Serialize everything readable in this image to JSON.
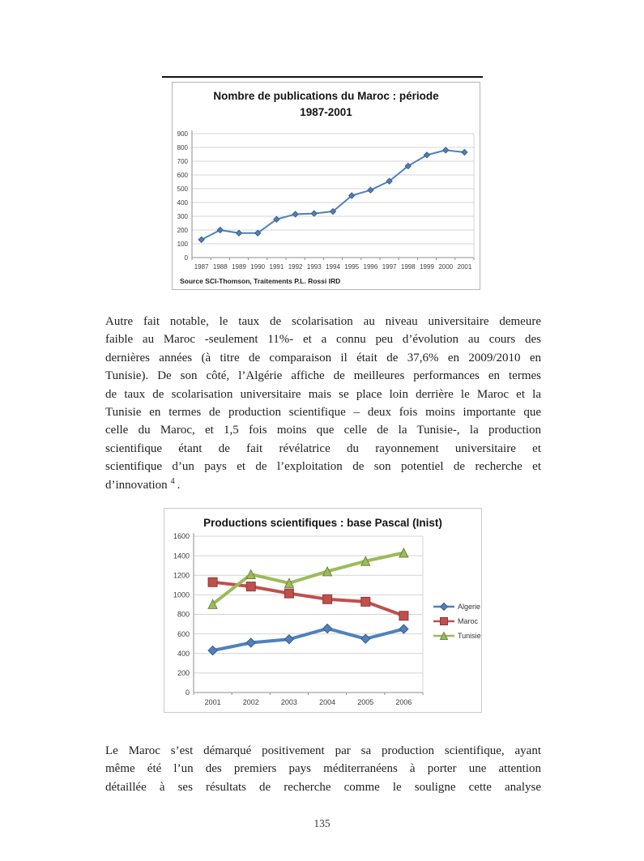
{
  "page": {
    "number": "135"
  },
  "paragraph1": {
    "lines": [
      "Autre fait notable, le taux de scolarisation au niveau universitaire demeure",
      "faible au Maroc -seulement 11%- et a connu peu d’évolution au cours des",
      "dernières années (à titre de comparaison il était de 37,6% en 2009/2010 en",
      "Tunisie). De son côté, l’Algérie affiche de meilleures performances en termes",
      "de taux de scolarisation universitaire mais se place loin derrière le Maroc et la",
      "Tunisie en termes de production scientifique – deux fois moins importante que",
      "celle du Maroc, et 1,5 fois moins que celle de la Tunisie-, la production",
      "scientifique étant de fait révélatrice du rayonnement universitaire et",
      "scientifique d’un pays et de l’exploitation de son potentiel de recherche et"
    ],
    "last_line": {
      "text": "d’innovation",
      "footnote_ref": "4",
      "period": "."
    }
  },
  "paragraph2": {
    "lines": [
      "Le Maroc s’est démarqué positivement par sa production scientifique, ayant",
      "même été l’un des premiers pays méditerranéens à porter une attention",
      "détaillée à ses résultats de recherche comme le souligne cette analyse"
    ]
  },
  "chart_data": [
    {
      "type": "line",
      "title": "Nombre de publications du Maroc : période 1987-2001",
      "x": [
        "1987",
        "1988",
        "1989",
        "1990",
        "1991",
        "1992",
        "1993",
        "1994",
        "1995",
        "1996",
        "1997",
        "1998",
        "1999",
        "2000",
        "2001"
      ],
      "series": [
        {
          "name": "Maroc",
          "color": "#4F81BD",
          "marker": "diamond",
          "values": [
            130,
            200,
            178,
            178,
            278,
            315,
            320,
            335,
            450,
            490,
            555,
            665,
            745,
            780,
            765
          ]
        }
      ],
      "ylim": [
        0,
        900
      ],
      "ytick_step": 100,
      "grid": true,
      "legend": false,
      "source": "Source SCI-Thomson, Traitements P.L. Rossi IRD"
    },
    {
      "type": "line",
      "title": "Productions scientifiques : base Pascal (Inist)",
      "x": [
        "2001",
        "2002",
        "2003",
        "2004",
        "2005",
        "2006"
      ],
      "series": [
        {
          "name": "Algerie",
          "color": "#4F81BD",
          "marker": "diamond",
          "values": [
            430,
            510,
            545,
            655,
            550,
            650
          ]
        },
        {
          "name": "Maroc",
          "color": "#C0504D",
          "marker": "square",
          "values": [
            1130,
            1085,
            1015,
            955,
            930,
            785
          ]
        },
        {
          "name": "Tunisie",
          "color": "#9BBB59",
          "marker": "triangle",
          "values": [
            905,
            1210,
            1120,
            1240,
            1345,
            1430
          ]
        }
      ],
      "ylim": [
        0,
        1600
      ],
      "ytick_step": 200,
      "grid": true,
      "legend": true,
      "legend_position": "right"
    }
  ]
}
